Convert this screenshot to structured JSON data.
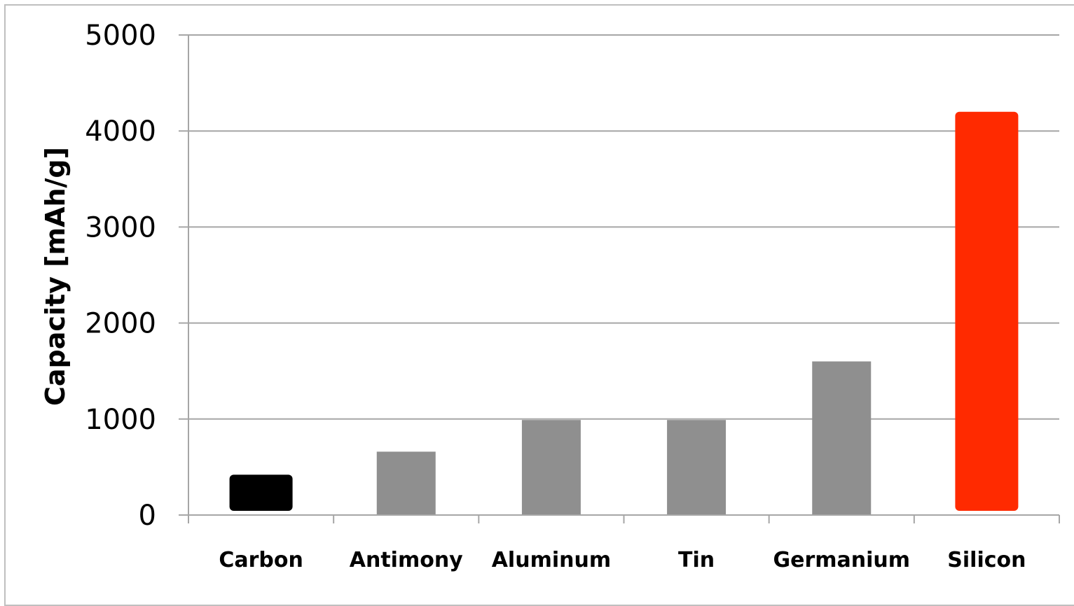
{
  "chart_data": {
    "type": "bar",
    "title": "",
    "xlabel": "",
    "ylabel": "Capacity [mAh/g]",
    "categories": [
      "Carbon",
      "Antimony",
      "Aluminum",
      "Tin",
      "Germanium",
      "Silicon"
    ],
    "values": [
      420,
      660,
      990,
      990,
      1600,
      4200
    ],
    "bar_colors": [
      "#000000",
      "#8f8f8f",
      "#8f8f8f",
      "#8f8f8f",
      "#8f8f8f",
      "#ff2a00"
    ],
    "ylim": [
      0,
      5000
    ],
    "yticks": [
      0,
      1000,
      2000,
      3000,
      4000,
      5000
    ],
    "grid": true,
    "legend": "none"
  }
}
